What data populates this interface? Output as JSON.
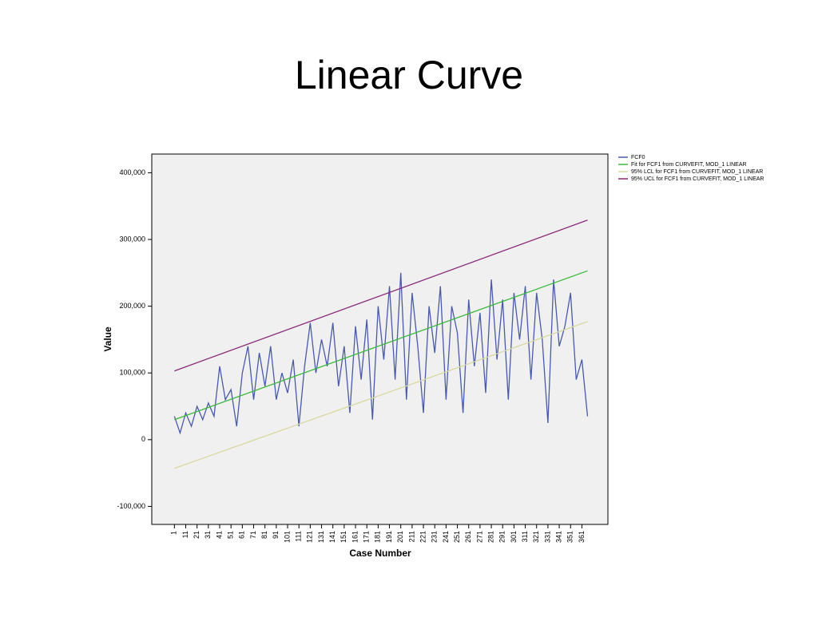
{
  "chart_data": {
    "type": "line",
    "title": "Linear Curve",
    "x_label": "Case Number",
    "y_label": "Value",
    "xlim": [
      -19,
      384
    ],
    "ylim": [
      -127000,
      428000
    ],
    "xticks": [
      1,
      11,
      21,
      31,
      41,
      51,
      61,
      71,
      81,
      91,
      101,
      111,
      121,
      131,
      141,
      151,
      161,
      171,
      181,
      191,
      201,
      211,
      221,
      231,
      241,
      251,
      261,
      271,
      281,
      291,
      301,
      311,
      321,
      331,
      341,
      351,
      361
    ],
    "yticks": [
      {
        "value": -100000,
        "label": "-100,000"
      },
      0,
      {
        "value": 100000,
        "label": "100,000"
      },
      {
        "value": 200000,
        "label": "200,000"
      },
      {
        "value": 300000,
        "label": "300,000"
      },
      {
        "value": 400000,
        "label": "400,000"
      }
    ],
    "legend": "right",
    "series": [
      {
        "name": "FCF0",
        "color": "#4a5aa8",
        "x": [
          1,
          6,
          11,
          16,
          21,
          26,
          31,
          36,
          41,
          46,
          51,
          56,
          61,
          66,
          71,
          76,
          81,
          86,
          91,
          96,
          101,
          106,
          111,
          116,
          121,
          126,
          131,
          136,
          141,
          146,
          151,
          156,
          161,
          166,
          171,
          176,
          181,
          186,
          191,
          196,
          201,
          206,
          211,
          216,
          221,
          226,
          231,
          236,
          241,
          246,
          251,
          256,
          261,
          266,
          271,
          276,
          281,
          286,
          291,
          296,
          301,
          306,
          311,
          316,
          321,
          326,
          331,
          336,
          341,
          346,
          351,
          356,
          361,
          366
        ],
        "values": [
          35000,
          10000,
          40000,
          20000,
          50000,
          30000,
          55000,
          35000,
          110000,
          60000,
          75000,
          20000,
          100000,
          140000,
          60000,
          130000,
          80000,
          140000,
          60000,
          100000,
          70000,
          120000,
          20000,
          110000,
          175000,
          100000,
          150000,
          110000,
          175000,
          80000,
          140000,
          40000,
          170000,
          90000,
          180000,
          30000,
          200000,
          120000,
          230000,
          90000,
          250000,
          60000,
          220000,
          140000,
          40000,
          200000,
          130000,
          230000,
          60000,
          200000,
          160000,
          40000,
          210000,
          110000,
          190000,
          70000,
          240000,
          120000,
          210000,
          60000,
          220000,
          150000,
          230000,
          90000,
          220000,
          150000,
          25000,
          240000,
          140000,
          170000,
          220000,
          90000,
          120000,
          35000
        ]
      },
      {
        "name": "Fit for FCF1 from CURVEFIT, MOD_1 LINEAR",
        "color": "#3cb83c",
        "x": [
          1,
          366
        ],
        "values": [
          30000,
          253000
        ]
      },
      {
        "name": "95% LCL for FCF1 from CURVEFIT, MOD_1 LINEAR",
        "color": "#d8d8a0",
        "x": [
          1,
          366
        ],
        "values": [
          -43000,
          177000
        ]
      },
      {
        "name": "95% UCL for FCF1 from CURVEFIT, MOD_1 LINEAR",
        "color": "#8a2a7a",
        "x": [
          1,
          366
        ],
        "values": [
          103000,
          329000
        ]
      }
    ]
  }
}
